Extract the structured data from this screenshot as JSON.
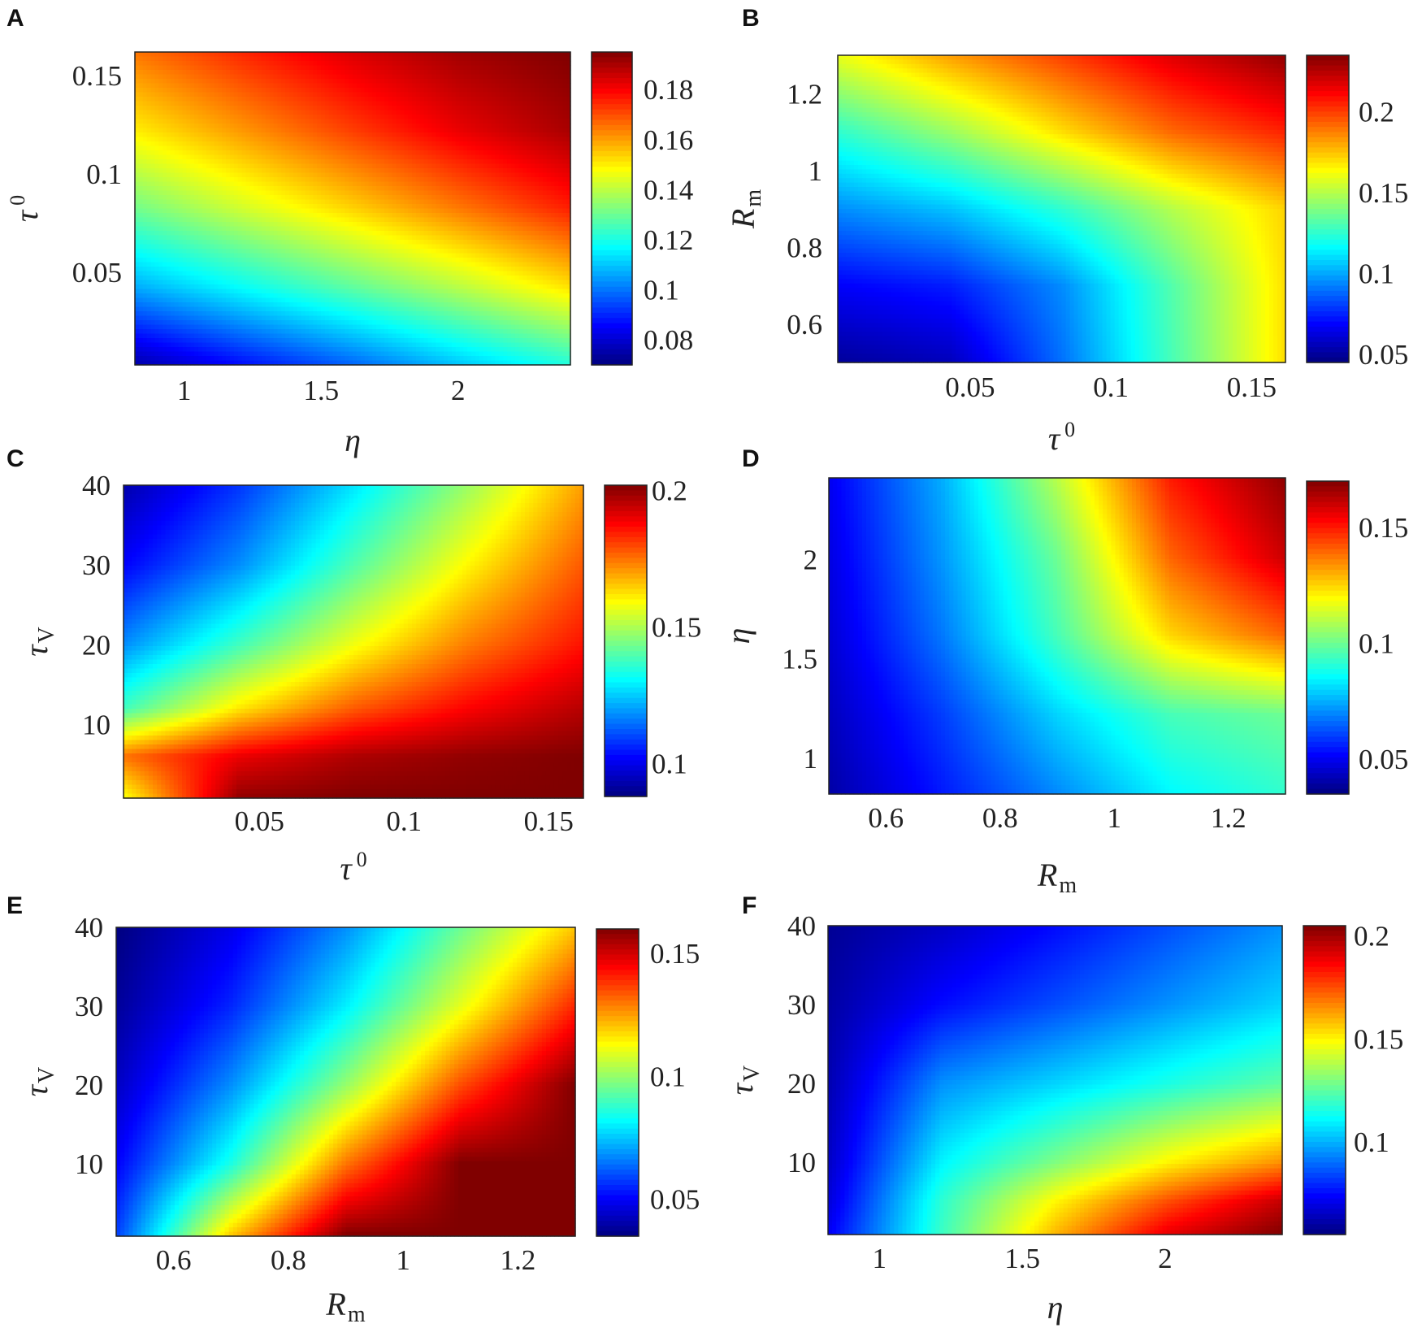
{
  "chart_data": [
    {
      "panel": "A",
      "type": "heatmap",
      "xlabel": "η",
      "ylabel": "τ",
      "ylabel_sup": "0",
      "xlim": [
        0.82,
        2.41
      ],
      "ylim": [
        0.003,
        0.162
      ],
      "xticks": [
        1,
        1.5,
        2
      ],
      "xtick_labels": [
        "1",
        "1.5",
        "2"
      ],
      "yticks": [
        0.05,
        0.1,
        0.15
      ],
      "ytick_labels": [
        "0.05",
        "0.1",
        "0.15"
      ],
      "zlim": [
        0.07,
        0.195
      ],
      "cticks": [
        0.08,
        0.1,
        0.12,
        0.14,
        0.16,
        0.18
      ],
      "ctick_labels": [
        "0.08",
        "0.1",
        "0.12",
        "0.14",
        "0.16",
        "0.18"
      ],
      "colormap": "jet",
      "x": [
        0.82,
        1.22,
        1.62,
        2.01,
        2.41
      ],
      "y": [
        0.003,
        0.043,
        0.083,
        0.122,
        0.162
      ],
      "z": [
        [
          0.075,
          0.087,
          0.098,
          0.11,
          0.121
        ],
        [
          0.107,
          0.118,
          0.129,
          0.14,
          0.152
        ],
        [
          0.131,
          0.143,
          0.154,
          0.165,
          0.176
        ],
        [
          0.15,
          0.161,
          0.172,
          0.182,
          0.19
        ],
        [
          0.165,
          0.175,
          0.184,
          0.191,
          0.195
        ]
      ]
    },
    {
      "panel": "B",
      "type": "heatmap",
      "xlabel": "τ",
      "xlabel_sup": "0",
      "ylabel": "R",
      "ylabel_sub": "m",
      "xlim": [
        0.003,
        0.162
      ],
      "ylim": [
        0.5,
        1.3
      ],
      "xticks": [
        0.05,
        0.1,
        0.15
      ],
      "xtick_labels": [
        "0.05",
        "0.1",
        "0.15"
      ],
      "yticks": [
        0.6,
        0.8,
        1,
        1.2
      ],
      "ytick_labels": [
        "0.6",
        "0.8",
        "1",
        "1.2"
      ],
      "zlim": [
        0.045,
        0.235
      ],
      "cticks": [
        0.05,
        0.1,
        0.15,
        0.2
      ],
      "ctick_labels": [
        "0.05",
        "0.1",
        "0.15",
        "0.2"
      ],
      "colormap": "jet",
      "x": [
        0.003,
        0.043,
        0.083,
        0.122,
        0.162
      ],
      "y": [
        0.5,
        0.7,
        0.9,
        1.1,
        1.3
      ],
      "z": [
        [
          0.05,
          0.056,
          0.09,
          0.13,
          0.17
        ],
        [
          0.068,
          0.074,
          0.095,
          0.132,
          0.17
        ],
        [
          0.095,
          0.105,
          0.125,
          0.15,
          0.172
        ],
        [
          0.125,
          0.145,
          0.17,
          0.192,
          0.205
        ],
        [
          0.16,
          0.182,
          0.2,
          0.218,
          0.232
        ]
      ]
    },
    {
      "panel": "C",
      "type": "heatmap",
      "xlabel": "τ",
      "xlabel_sup": "0",
      "ylabel": "τ",
      "ylabel_sub": "V",
      "xlim": [
        0.003,
        0.162
      ],
      "ylim": [
        0.8,
        40
      ],
      "xticks": [
        0.05,
        0.1,
        0.15
      ],
      "xtick_labels": [
        "0.05",
        "0.1",
        "0.15"
      ],
      "yticks": [
        10,
        20,
        30,
        40
      ],
      "ytick_labels": [
        "10",
        "20",
        "30",
        "40"
      ],
      "zlim": [
        0.088,
        0.202
      ],
      "cticks": [
        0.1,
        0.15,
        0.2
      ],
      "ctick_labels": [
        "0.1",
        "0.15",
        "0.2"
      ],
      "colormap": "jet",
      "x": [
        0.003,
        0.043,
        0.083,
        0.122,
        0.162
      ],
      "y": [
        0.8,
        6,
        12,
        20,
        30,
        40
      ],
      "z": [
        [
          0.158,
          0.2,
          0.202,
          0.202,
          0.202
        ],
        [
          0.175,
          0.19,
          0.197,
          0.2,
          0.202
        ],
        [
          0.138,
          0.162,
          0.178,
          0.188,
          0.196
        ],
        [
          0.118,
          0.138,
          0.158,
          0.174,
          0.186
        ],
        [
          0.102,
          0.118,
          0.14,
          0.16,
          0.178
        ],
        [
          0.093,
          0.108,
          0.128,
          0.148,
          0.17
        ]
      ]
    },
    {
      "panel": "D",
      "type": "heatmap",
      "xlabel": "R",
      "xlabel_sub": "m",
      "ylabel": "η",
      "xlim": [
        0.5,
        1.3
      ],
      "ylim": [
        0.82,
        2.41
      ],
      "xticks": [
        0.6,
        0.8,
        1,
        1.2
      ],
      "xtick_labels": [
        "0.6",
        "0.8",
        "1",
        "1.2"
      ],
      "yticks": [
        1,
        1.5,
        2
      ],
      "ytick_labels": [
        "1",
        "1.5",
        "2"
      ],
      "zlim": [
        0.035,
        0.17
      ],
      "cticks": [
        0.05,
        0.1,
        0.15
      ],
      "ctick_labels": [
        "0.05",
        "0.1",
        "0.15"
      ],
      "colormap": "jet",
      "x": [
        0.5,
        0.7,
        0.9,
        1.1,
        1.3
      ],
      "y": [
        0.82,
        1.22,
        1.62,
        2.01,
        2.41
      ],
      "z": [
        [
          0.04,
          0.055,
          0.07,
          0.085,
          0.092
        ],
        [
          0.043,
          0.06,
          0.08,
          0.095,
          0.1
        ],
        [
          0.046,
          0.068,
          0.095,
          0.125,
          0.14
        ],
        [
          0.048,
          0.072,
          0.1,
          0.14,
          0.16
        ],
        [
          0.05,
          0.075,
          0.11,
          0.15,
          0.168
        ]
      ]
    },
    {
      "panel": "E",
      "type": "heatmap",
      "xlabel": "R",
      "xlabel_sub": "m",
      "ylabel": "τ",
      "ylabel_sub": "V",
      "xlim": [
        0.5,
        1.3
      ],
      "ylim": [
        0.8,
        40
      ],
      "xticks": [
        0.6,
        0.8,
        1,
        1.2
      ],
      "xtick_labels": [
        "0.6",
        "0.8",
        "1",
        "1.2"
      ],
      "yticks": [
        10,
        20,
        30,
        40
      ],
      "ytick_labels": [
        "10",
        "20",
        "30",
        "40"
      ],
      "zlim": [
        0.035,
        0.16
      ],
      "cticks": [
        0.05,
        0.1,
        0.15
      ],
      "ctick_labels": [
        "0.05",
        "0.1",
        "0.15"
      ],
      "colormap": "jet",
      "x": [
        0.5,
        0.7,
        0.9,
        1.1,
        1.3
      ],
      "y": [
        0.8,
        10,
        20,
        30,
        40
      ],
      "z": [
        [
          0.058,
          0.12,
          0.16,
          0.16,
          0.16
        ],
        [
          0.05,
          0.085,
          0.13,
          0.16,
          0.16
        ],
        [
          0.043,
          0.068,
          0.1,
          0.135,
          0.16
        ],
        [
          0.038,
          0.055,
          0.08,
          0.11,
          0.14
        ],
        [
          0.035,
          0.048,
          0.068,
          0.095,
          0.12
        ]
      ]
    },
    {
      "panel": "F",
      "type": "heatmap",
      "xlabel": "η",
      "ylabel": "τ",
      "ylabel_sub": "V",
      "xlim": [
        0.82,
        2.41
      ],
      "ylim": [
        0.8,
        40
      ],
      "xticks": [
        1,
        1.5,
        2
      ],
      "xtick_labels": [
        "1",
        "1.5",
        "2"
      ],
      "yticks": [
        10,
        20,
        30,
        40
      ],
      "ytick_labels": [
        "10",
        "20",
        "30",
        "40"
      ],
      "zlim": [
        0.055,
        0.205
      ],
      "cticks": [
        0.1,
        0.15,
        0.2
      ],
      "ctick_labels": [
        "0.1",
        "0.15",
        "0.2"
      ],
      "colormap": "jet",
      "x": [
        0.82,
        1.22,
        1.62,
        2.01,
        2.41
      ],
      "y": [
        0.8,
        5,
        10,
        20,
        30,
        40
      ],
      "z": [
        [
          0.072,
          0.12,
          0.16,
          0.19,
          0.205
        ],
        [
          0.068,
          0.118,
          0.15,
          0.175,
          0.195
        ],
        [
          0.065,
          0.11,
          0.13,
          0.15,
          0.165
        ],
        [
          0.062,
          0.095,
          0.105,
          0.115,
          0.125
        ],
        [
          0.06,
          0.075,
          0.085,
          0.095,
          0.105
        ],
        [
          0.058,
          0.065,
          0.075,
          0.085,
          0.095
        ]
      ]
    }
  ]
}
